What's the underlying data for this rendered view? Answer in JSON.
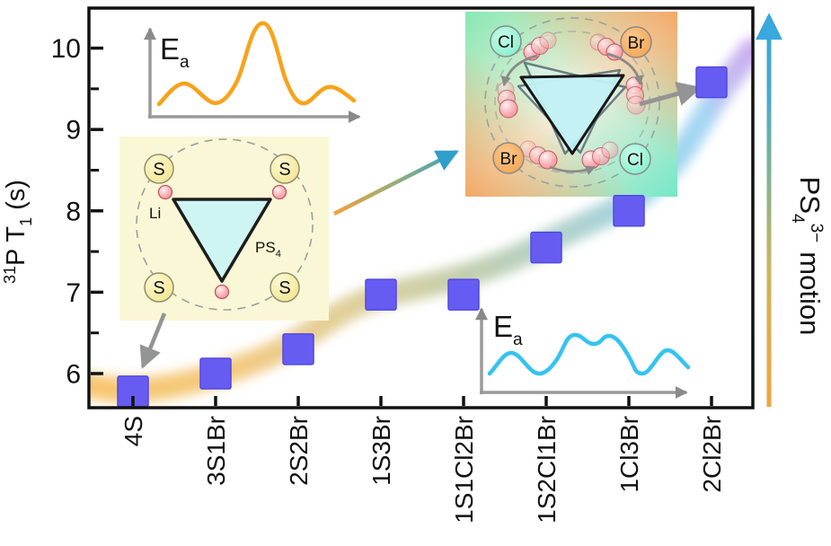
{
  "figure": {
    "description": "31P spin-lattice relaxation time T1 versus sulfide/halide composition with PS4 tetrahedron motion schematics",
    "background": "#FFFFFF"
  },
  "chart_data": {
    "type": "scatter",
    "categories": [
      "4S",
      "3S1Br",
      "2S2Br",
      "1S3Br",
      "1S1Cl2Br",
      "1S2Cl1Br",
      "1Cl3Br",
      "2Cl2Br"
    ],
    "values": [
      5.78,
      6.0,
      6.3,
      6.97,
      6.97,
      7.55,
      8.0,
      9.58
    ],
    "series_name": "31P T1",
    "marker": "square",
    "marker_color": "#675CF2",
    "marker_edge_color": "#5148E0",
    "xlabel": "",
    "ylabel": "31P T1 (s)",
    "ylim": [
      5.6,
      10.5
    ],
    "yticks": [
      6,
      7,
      8,
      9,
      10
    ],
    "grid": false,
    "legend": "none",
    "trend_band": {
      "shape": "smooth exponential-like rising band through the data points",
      "gradient": [
        "#F7BE5C",
        "#D9CB92",
        "#A9CDC3",
        "#95D2EE",
        "#C9A4EE"
      ]
    }
  },
  "y_axis": {
    "sup": "31",
    "main": "P T",
    "sub": "1",
    "unit": "(s)"
  },
  "motion_arrow": {
    "text_main": "PS",
    "text_sub": "4",
    "text_sup": "3−",
    "text_rest": "motion",
    "color_bottom": "#F2A33C",
    "color_top": "#39A6DC"
  },
  "energy_inset_ordered": {
    "label": "E",
    "label_sub": "a",
    "curve_color": "#F9A21A"
  },
  "energy_inset_disordered": {
    "label": "E",
    "label_sub": "a",
    "curve_color": "#35C3F2"
  },
  "ps4_inset_ordered": {
    "s": "S",
    "li": "Li",
    "ps": "PS",
    "ps_sub": "4",
    "bg": "#FAF7D6"
  },
  "ps4_inset_disordered": {
    "cl": "Cl",
    "br": "Br",
    "bg_green": "#88E8B4",
    "bg_orange": "#F2A159"
  }
}
